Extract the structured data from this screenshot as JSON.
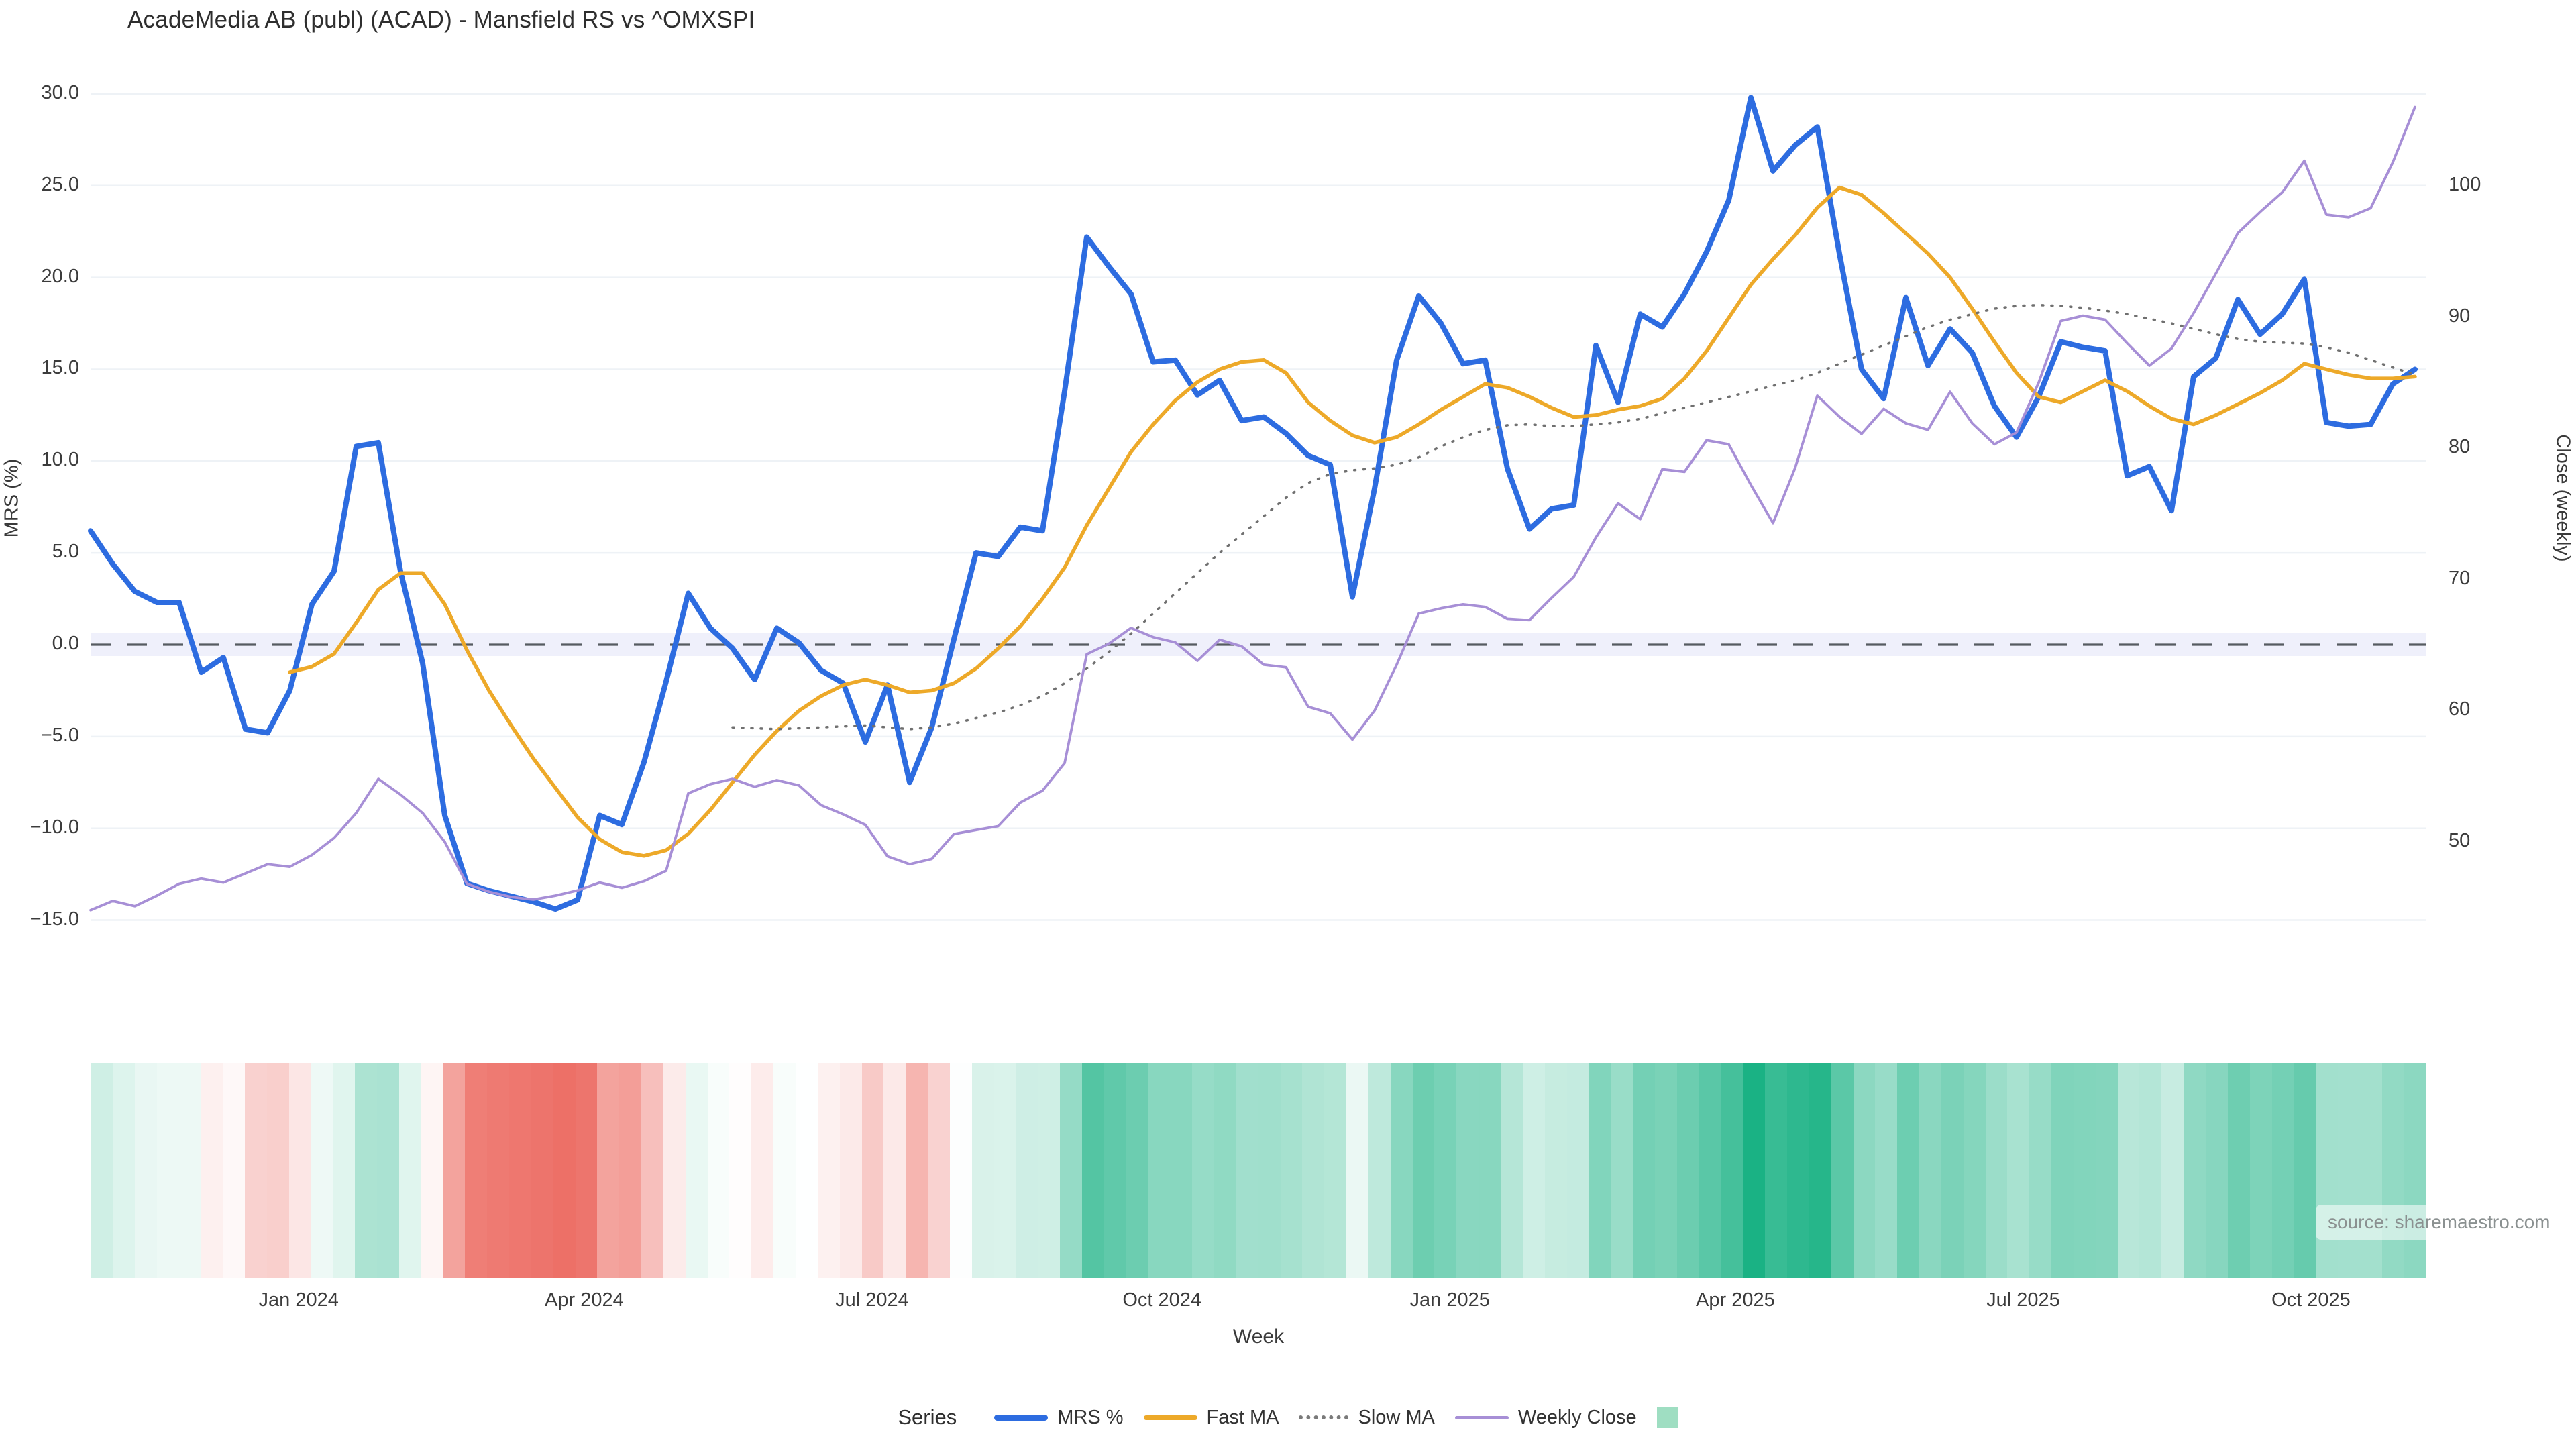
{
  "title": "AcadeMedia AB (publ) (ACAD) - Mansfield RS vs ^OMXSPI",
  "source_note": "source: sharemaestro.com",
  "legend": {
    "label": "Series",
    "items": [
      {
        "name": "MRS %",
        "swatch": "line",
        "color": "#2d6ce0"
      },
      {
        "name": "Fast MA",
        "swatch": "line",
        "color": "#eda929"
      },
      {
        "name": "Slow MA",
        "swatch": "dotted",
        "color": "#7a7a7a"
      },
      {
        "name": "Weekly Close",
        "swatch": "line",
        "color": "#a78fd6"
      },
      {
        "name": "",
        "swatch": "square",
        "color": "#9fdec2"
      }
    ]
  },
  "chart_data": {
    "type": "line",
    "title": "AcadeMedia AB (publ) (ACAD) - Mansfield RS vs ^OMXSPI",
    "xlabel": "Week",
    "ylabel_left": "MRS (%)",
    "ylabel_right": "Close (weekly)",
    "ylim_left": [
      -15,
      30
    ],
    "yticks_left": [
      30.0,
      25.0,
      20.0,
      15.0,
      10.0,
      5.0,
      0.0,
      -5.0,
      -10.0,
      -15.0
    ],
    "yticks_right": [
      100,
      90,
      80,
      70,
      60,
      50
    ],
    "grid": "horizontal-faint",
    "legend_position": "bottom-center",
    "zero_reference_line": 0,
    "x_ticks": [
      {
        "label": "Jan 2024",
        "week": 9.4
      },
      {
        "label": "Apr 2024",
        "week": 22.3
      },
      {
        "label": "Jul 2024",
        "week": 35.3
      },
      {
        "label": "Oct 2024",
        "week": 48.4
      },
      {
        "label": "Jan 2025",
        "week": 61.4
      },
      {
        "label": "Apr 2025",
        "week": 74.3
      },
      {
        "label": "Jul 2025",
        "week": 87.3
      },
      {
        "label": "Oct 2025",
        "week": 100.3
      }
    ],
    "x_unit": "week-index from late Oct 2023, weekly data",
    "series": [
      {
        "name": "MRS %",
        "axis": "left",
        "style": "solid",
        "color": "#2d6ce0",
        "width": 8,
        "values": [
          6.2,
          4.4,
          2.9,
          2.3,
          2.3,
          -1.5,
          -0.7,
          -4.6,
          -4.8,
          -2.5,
          2.2,
          4.0,
          10.8,
          11.0,
          4.0,
          -1.0,
          -9.3,
          -13.0,
          -13.4,
          -13.7,
          -14.0,
          -14.4,
          -13.9,
          -9.3,
          -9.8,
          -6.4,
          -2.0,
          2.8,
          0.9,
          -0.2,
          -1.9,
          0.9,
          0.1,
          -1.4,
          -2.1,
          -5.3,
          -2.2,
          -7.5,
          -4.5,
          0.3,
          5.0,
          4.8,
          6.4,
          6.2,
          13.8,
          22.2,
          20.6,
          19.1,
          15.4,
          15.5,
          13.6,
          14.4,
          12.2,
          12.4,
          11.5,
          10.3,
          9.8,
          2.6,
          8.5,
          15.5,
          19.0,
          17.5,
          15.3,
          15.5,
          9.6,
          6.3,
          7.4,
          7.6,
          16.3,
          13.2,
          18.0,
          17.3,
          19.1,
          21.4,
          24.2,
          29.8,
          25.8,
          27.2,
          28.2,
          21.3,
          15.0,
          13.4,
          18.9,
          15.2,
          17.2,
          15.9,
          13.0,
          11.3,
          13.5,
          16.5,
          16.2,
          16.0,
          9.2,
          9.7,
          7.3,
          14.6,
          15.6,
          18.8,
          16.9,
          18.0,
          19.9,
          12.1,
          11.9,
          12.0,
          14.2,
          15.0
        ]
      },
      {
        "name": "Fast MA",
        "axis": "left",
        "style": "solid",
        "color": "#eda929",
        "width": 5.5,
        "values": [
          null,
          null,
          null,
          null,
          null,
          null,
          null,
          null,
          null,
          -1.5,
          -1.2,
          -0.5,
          1.2,
          3.0,
          3.9,
          3.9,
          2.2,
          -0.3,
          -2.5,
          -4.4,
          -6.2,
          -7.8,
          -9.4,
          -10.6,
          -11.3,
          -11.5,
          -11.2,
          -10.3,
          -9.0,
          -7.5,
          -6.0,
          -4.7,
          -3.6,
          -2.8,
          -2.2,
          -1.9,
          -2.2,
          -2.6,
          -2.5,
          -2.1,
          -1.3,
          -0.2,
          1.0,
          2.5,
          4.2,
          6.5,
          8.5,
          10.5,
          12.0,
          13.3,
          14.3,
          15.0,
          15.4,
          15.5,
          14.8,
          13.2,
          12.2,
          11.4,
          11.0,
          11.3,
          12.0,
          12.8,
          13.5,
          14.2,
          14.0,
          13.5,
          12.9,
          12.4,
          12.5,
          12.8,
          13.0,
          13.4,
          14.5,
          16.0,
          17.8,
          19.6,
          21.0,
          22.3,
          23.8,
          24.9,
          24.5,
          23.5,
          22.4,
          21.3,
          20.0,
          18.3,
          16.5,
          14.8,
          13.5,
          13.2,
          13.8,
          14.4,
          13.8,
          13.0,
          12.3,
          12.0,
          12.5,
          13.1,
          13.7,
          14.4,
          15.3,
          15.0,
          14.7,
          14.5,
          14.5,
          14.6
        ]
      },
      {
        "name": "Slow MA",
        "axis": "left",
        "style": "dotted",
        "color": "#707070",
        "width": 3.5,
        "values": [
          null,
          null,
          null,
          null,
          null,
          null,
          null,
          null,
          null,
          null,
          null,
          null,
          null,
          null,
          null,
          null,
          null,
          null,
          null,
          null,
          null,
          null,
          null,
          null,
          null,
          null,
          null,
          null,
          null,
          -4.5,
          -4.55,
          -4.6,
          -4.55,
          -4.5,
          -4.45,
          -4.4,
          -4.5,
          -4.6,
          -4.5,
          -4.3,
          -4.0,
          -3.7,
          -3.3,
          -2.8,
          -2.1,
          -1.3,
          -0.4,
          0.6,
          1.7,
          2.8,
          3.9,
          5.0,
          6.0,
          7.0,
          8.0,
          8.8,
          9.3,
          9.5,
          9.6,
          9.8,
          10.2,
          10.8,
          11.3,
          11.7,
          11.95,
          12.0,
          11.9,
          11.9,
          12.0,
          12.1,
          12.3,
          12.6,
          12.9,
          13.2,
          13.5,
          13.8,
          14.1,
          14.4,
          14.8,
          15.3,
          15.8,
          16.3,
          16.8,
          17.3,
          17.7,
          18.0,
          18.3,
          18.45,
          18.5,
          18.45,
          18.35,
          18.2,
          18.0,
          17.75,
          17.5,
          17.2,
          16.9,
          16.65,
          16.5,
          16.45,
          16.4,
          16.2,
          15.9,
          15.5,
          15.1,
          14.7
        ]
      },
      {
        "name": "Weekly Close",
        "axis": "right",
        "style": "solid",
        "color": "#a78fd6",
        "width": 3.8,
        "values": [
          44.8,
          45.5,
          45.1,
          45.9,
          46.8,
          47.2,
          46.9,
          47.6,
          48.3,
          48.1,
          49.0,
          50.3,
          52.2,
          54.8,
          53.6,
          52.2,
          50.0,
          46.8,
          46.2,
          45.8,
          45.6,
          45.9,
          46.3,
          46.9,
          46.5,
          47.0,
          47.8,
          53.7,
          54.4,
          54.8,
          54.2,
          54.7,
          54.3,
          52.8,
          52.1,
          51.3,
          48.9,
          48.3,
          48.7,
          50.6,
          50.9,
          51.2,
          53.0,
          53.9,
          56.0,
          64.3,
          65.1,
          66.3,
          65.6,
          65.2,
          63.8,
          65.4,
          64.9,
          63.5,
          63.3,
          60.3,
          59.8,
          57.8,
          60.0,
          63.5,
          67.4,
          67.8,
          68.1,
          67.9,
          67.0,
          66.9,
          68.6,
          70.2,
          73.2,
          75.8,
          74.6,
          78.4,
          78.2,
          80.6,
          80.3,
          77.2,
          74.3,
          78.5,
          84.0,
          82.4,
          81.1,
          83.0,
          81.9,
          81.4,
          84.3,
          81.9,
          80.3,
          81.2,
          85.0,
          89.7,
          90.1,
          89.8,
          88.0,
          86.3,
          87.6,
          90.3,
          93.3,
          96.4,
          98.0,
          99.5,
          101.9,
          97.8,
          97.6,
          98.3,
          101.8,
          106.0
        ]
      }
    ],
    "heatmap_strip": {
      "description": "weekly color band below chart derived from MRS % value",
      "positive_color": "#18b183",
      "negative_color": "#ec6a61",
      "neutral_color": "#ffffff",
      "positive_scale_max": 30,
      "negative_scale_max": -15
    }
  }
}
